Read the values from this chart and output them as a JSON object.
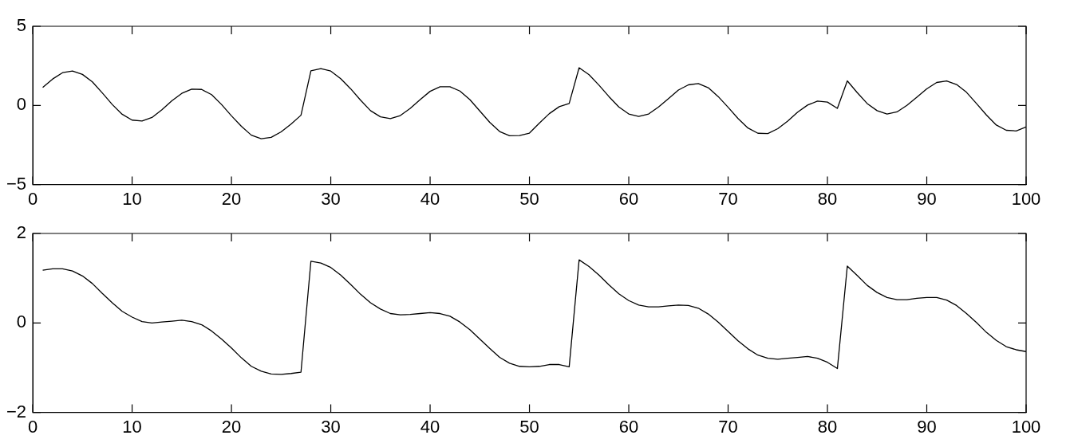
{
  "chart_data": [
    {
      "type": "line",
      "x": [
        1,
        2,
        3,
        4,
        5,
        6,
        7,
        8,
        9,
        10,
        11,
        12,
        13,
        14,
        15,
        16,
        17,
        18,
        19,
        20,
        21,
        22,
        23,
        24,
        25,
        26,
        27,
        28,
        29,
        30,
        31,
        32,
        33,
        34,
        35,
        36,
        37,
        38,
        39,
        40,
        41,
        42,
        43,
        44,
        45,
        46,
        47,
        48,
        49,
        50,
        51,
        52,
        53,
        54,
        55,
        56,
        57,
        58,
        59,
        60,
        61,
        62,
        63,
        64,
        65,
        66,
        67,
        68,
        69,
        70,
        71,
        72,
        73,
        74,
        75,
        76,
        77,
        78,
        79,
        80,
        81,
        82,
        83,
        84,
        85,
        86,
        87,
        88,
        89,
        90,
        91,
        92,
        93,
        94,
        95,
        96,
        97,
        98,
        99,
        100
      ],
      "series": [
        {
          "color": "#000000",
          "values": [
            1.14,
            1.67,
            2.07,
            2.17,
            1.96,
            1.49,
            0.79,
            0.06,
            -0.56,
            -0.93,
            -0.99,
            -0.76,
            -0.27,
            0.29,
            0.76,
            1.03,
            1.01,
            0.68,
            0.06,
            -0.66,
            -1.32,
            -1.88,
            -2.11,
            -2.02,
            -1.67,
            -1.18,
            -0.62,
            2.19,
            2.33,
            2.17,
            1.69,
            1.05,
            0.33,
            -0.33,
            -0.72,
            -0.83,
            -0.64,
            -0.19,
            0.37,
            0.89,
            1.18,
            1.18,
            0.91,
            0.37,
            -0.35,
            -1.07,
            -1.65,
            -1.92,
            -1.9,
            -1.75,
            -1.12,
            -0.52,
            -0.08,
            0.12,
            2.38,
            1.94,
            1.28,
            0.56,
            -0.1,
            -0.54,
            -0.7,
            -0.54,
            -0.1,
            0.43,
            0.97,
            1.3,
            1.38,
            1.12,
            0.56,
            -0.12,
            -0.83,
            -1.43,
            -1.76,
            -1.78,
            -1.47,
            -0.99,
            -0.43,
            0.02,
            0.27,
            0.21,
            -0.19,
            1.55,
            0.81,
            0.12,
            -0.33,
            -0.54,
            -0.41,
            0,
            0.52,
            1.05,
            1.45,
            1.55,
            1.32,
            0.83,
            0.12,
            -0.6,
            -1.24,
            -1.57,
            -1.61,
            -1.36
          ]
        }
      ],
      "xlim": [
        0,
        100
      ],
      "xticks": [
        0,
        10,
        20,
        30,
        40,
        50,
        60,
        70,
        80,
        90,
        100
      ],
      "ylim": [
        -5,
        5
      ],
      "yticks": [
        -5,
        0,
        5
      ],
      "grid": false,
      "legend": false,
      "marker": "none",
      "line_style": "solid"
    },
    {
      "type": "line",
      "x": [
        1,
        2,
        3,
        4,
        5,
        6,
        7,
        8,
        9,
        10,
        11,
        12,
        13,
        14,
        15,
        16,
        17,
        18,
        19,
        20,
        21,
        22,
        23,
        24,
        25,
        26,
        27,
        28,
        29,
        30,
        31,
        32,
        33,
        34,
        35,
        36,
        37,
        38,
        39,
        40,
        41,
        42,
        43,
        44,
        45,
        46,
        47,
        48,
        49,
        50,
        51,
        52,
        53,
        54,
        55,
        56,
        57,
        58,
        59,
        60,
        61,
        62,
        63,
        64,
        65,
        66,
        67,
        68,
        69,
        70,
        71,
        72,
        73,
        74,
        75,
        76,
        77,
        78,
        79,
        80,
        81,
        82,
        83,
        84,
        85,
        86,
        87,
        88,
        89,
        90,
        91,
        92,
        93,
        94,
        95,
        96,
        97,
        98,
        99,
        100
      ],
      "series": [
        {
          "color": "#000000",
          "values": [
            1.18,
            1.21,
            1.21,
            1.16,
            1.05,
            0.88,
            0.66,
            0.45,
            0.26,
            0.13,
            0.03,
            0,
            0.02,
            0.04,
            0.06,
            0.03,
            -0.04,
            -0.18,
            -0.36,
            -0.56,
            -0.78,
            -0.97,
            -1.08,
            -1.14,
            -1.15,
            -1.13,
            -1.1,
            1.38,
            1.34,
            1.24,
            1.07,
            0.86,
            0.64,
            0.45,
            0.31,
            0.21,
            0.18,
            0.19,
            0.21,
            0.23,
            0.21,
            0.15,
            0.02,
            -0.15,
            -0.36,
            -0.57,
            -0.77,
            -0.9,
            -0.97,
            -0.98,
            -0.97,
            -0.93,
            -0.93,
            -0.98,
            1.41,
            1.26,
            1.07,
            0.85,
            0.65,
            0.5,
            0.4,
            0.36,
            0.36,
            0.38,
            0.4,
            0.39,
            0.33,
            0.2,
            0.02,
            -0.19,
            -0.4,
            -0.58,
            -0.72,
            -0.79,
            -0.81,
            -0.79,
            -0.77,
            -0.75,
            -0.79,
            -0.88,
            -1.02,
            1.27,
            1.06,
            0.84,
            0.68,
            0.57,
            0.52,
            0.52,
            0.55,
            0.57,
            0.57,
            0.51,
            0.39,
            0.21,
            0.01,
            -0.21,
            -0.39,
            -0.53,
            -0.6,
            -0.64
          ]
        }
      ],
      "xlim": [
        0,
        100
      ],
      "xticks": [
        0,
        10,
        20,
        30,
        40,
        50,
        60,
        70,
        80,
        90,
        100
      ],
      "ylim": [
        -2,
        2
      ],
      "yticks": [
        -2,
        0,
        2
      ],
      "grid": false,
      "legend": false,
      "marker": "none",
      "line_style": "solid"
    }
  ]
}
